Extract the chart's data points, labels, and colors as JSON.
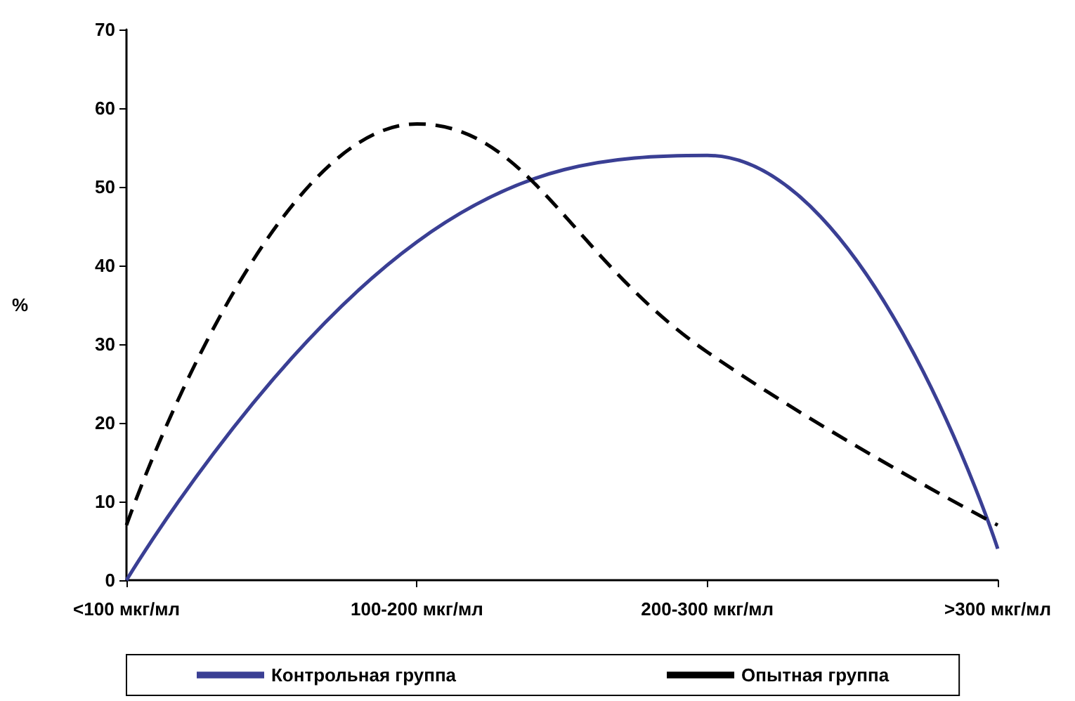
{
  "chart_data": {
    "type": "line",
    "ylabel": "%",
    "categories": [
      "<100 мкг/мл",
      "100-200 мкг/мл",
      "200-300 мкг/мл",
      ">300 мкг/мл"
    ],
    "series": [
      {
        "name": "Контрольная группа",
        "color": "#3a3f94",
        "values": [
          0,
          43,
          54,
          4
        ],
        "line_style": "solid"
      },
      {
        "name": "Опытная группа",
        "color": "#000000",
        "values": [
          7,
          58,
          29,
          7
        ],
        "line_style": "dashed"
      }
    ],
    "ylim": [
      0,
      70
    ],
    "yticks": [
      0,
      10,
      20,
      30,
      40,
      50,
      60,
      70
    ],
    "grid": false,
    "legend": "bottom",
    "marker": "none"
  }
}
